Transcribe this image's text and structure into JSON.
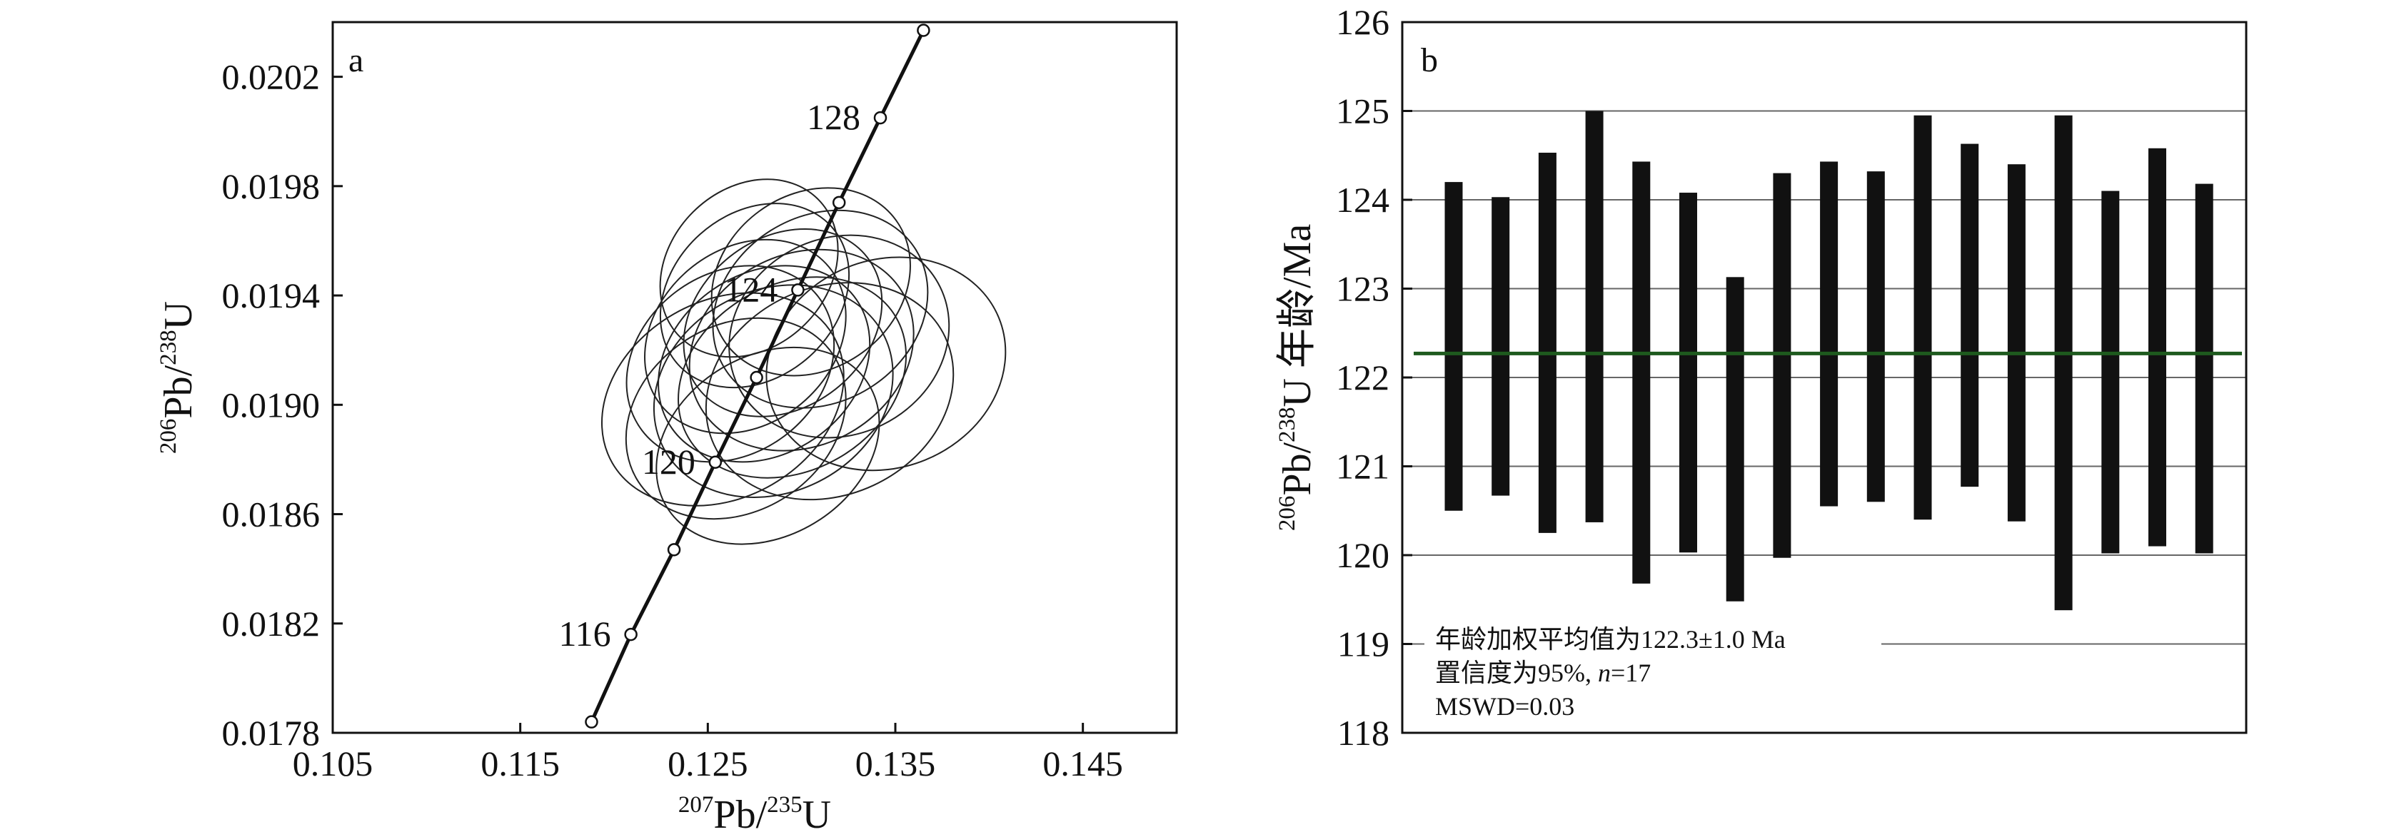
{
  "chart_data": [
    {
      "panel": "a",
      "type": "scatter",
      "subtype": "concordia-diagram-with-error-ellipses",
      "xlabel": {
        "sup1": "207",
        "base1": "Pb/",
        "sup2": "235",
        "base2": "U"
      },
      "ylabel": {
        "sup1": "206",
        "base1": "Pb/",
        "sup2": "238",
        "base2": "U"
      },
      "xlim": [
        0.105,
        0.15
      ],
      "ylim": [
        0.0178,
        0.0204
      ],
      "xticks": [
        "0.105",
        "0.115",
        "0.125",
        "0.135",
        "0.145"
      ],
      "yticks": [
        "0.0178",
        "0.0182",
        "0.0186",
        "0.0190",
        "0.0194",
        "0.0198",
        "0.0202"
      ],
      "concordia_points": [
        {
          "age": 114,
          "x": 0.1188,
          "y": 0.01784,
          "label": ""
        },
        {
          "age": 116,
          "x": 0.1209,
          "y": 0.01816,
          "label": "116"
        },
        {
          "age": 118,
          "x": 0.1232,
          "y": 0.01847,
          "label": ""
        },
        {
          "age": 120,
          "x": 0.1254,
          "y": 0.01879,
          "label": "120"
        },
        {
          "age": 122,
          "x": 0.1276,
          "y": 0.0191,
          "label": ""
        },
        {
          "age": 124,
          "x": 0.1298,
          "y": 0.01942,
          "label": "124"
        },
        {
          "age": 126,
          "x": 0.132,
          "y": 0.01974,
          "label": ""
        },
        {
          "age": 128,
          "x": 0.1342,
          "y": 0.02005,
          "label": "128"
        },
        {
          "age": 130,
          "x": 0.1365,
          "y": 0.02037,
          "label": ""
        }
      ],
      "ellipses": [
        {
          "cx": 0.1258,
          "cy": 0.01902,
          "rx": 0.0068,
          "ry": 0.00036,
          "angle": 30
        },
        {
          "cx": 0.128,
          "cy": 0.01915,
          "rx": 0.006,
          "ry": 0.00033,
          "angle": 35
        },
        {
          "cx": 0.13,
          "cy": 0.0192,
          "rx": 0.0062,
          "ry": 0.00035,
          "angle": 28
        },
        {
          "cx": 0.127,
          "cy": 0.01925,
          "rx": 0.0058,
          "ry": 0.00032,
          "angle": 40
        },
        {
          "cx": 0.129,
          "cy": 0.0193,
          "rx": 0.0057,
          "ry": 0.00031,
          "angle": 38
        },
        {
          "cx": 0.1265,
          "cy": 0.01895,
          "rx": 0.0062,
          "ry": 0.00034,
          "angle": 33
        },
        {
          "cx": 0.131,
          "cy": 0.01935,
          "rx": 0.006,
          "ry": 0.00034,
          "angle": 32
        },
        {
          "cx": 0.1285,
          "cy": 0.01905,
          "rx": 0.0066,
          "ry": 0.00037,
          "angle": 27
        },
        {
          "cx": 0.1275,
          "cy": 0.0194,
          "rx": 0.0055,
          "ry": 0.0003,
          "angle": 42
        },
        {
          "cx": 0.1295,
          "cy": 0.0191,
          "rx": 0.0064,
          "ry": 0.00034,
          "angle": 30
        },
        {
          "cx": 0.132,
          "cy": 0.01925,
          "rx": 0.006,
          "ry": 0.00036,
          "angle": 26
        },
        {
          "cx": 0.1262,
          "cy": 0.01915,
          "rx": 0.0059,
          "ry": 0.00033,
          "angle": 37
        },
        {
          "cx": 0.1305,
          "cy": 0.01945,
          "rx": 0.0056,
          "ry": 0.00032,
          "angle": 36
        },
        {
          "cx": 0.1282,
          "cy": 0.01885,
          "rx": 0.0063,
          "ry": 0.00033,
          "angle": 31
        },
        {
          "cx": 0.1315,
          "cy": 0.01905,
          "rx": 0.0068,
          "ry": 0.00038,
          "angle": 25
        },
        {
          "cx": 0.1272,
          "cy": 0.0195,
          "rx": 0.0052,
          "ry": 0.00029,
          "angle": 45
        },
        {
          "cx": 0.1345,
          "cy": 0.01915,
          "rx": 0.0065,
          "ry": 0.00038,
          "angle": 22
        }
      ]
    },
    {
      "panel": "b",
      "type": "bar",
      "subtype": "weighted-mean-age-error-bars",
      "ylabel": {
        "sup1": "206",
        "base1": "Pb/",
        "sup2": "238",
        "base2": "U 年龄/Ma"
      },
      "ylim": [
        118,
        126
      ],
      "yticks": [
        "118",
        "119",
        "120",
        "121",
        "122",
        "123",
        "124",
        "125",
        "126"
      ],
      "grid": "horizontal",
      "weighted_mean": 122.27,
      "bars": [
        {
          "low": 120.5,
          "high": 124.2
        },
        {
          "low": 120.67,
          "high": 124.03
        },
        {
          "low": 120.25,
          "high": 124.53
        },
        {
          "low": 120.37,
          "high": 125.0
        },
        {
          "low": 119.68,
          "high": 124.43
        },
        {
          "low": 120.03,
          "high": 124.08
        },
        {
          "low": 119.48,
          "high": 123.13
        },
        {
          "low": 119.97,
          "high": 124.3
        },
        {
          "low": 120.55,
          "high": 124.43
        },
        {
          "low": 120.6,
          "high": 124.32
        },
        {
          "low": 120.4,
          "high": 124.95
        },
        {
          "low": 120.77,
          "high": 124.63
        },
        {
          "low": 120.38,
          "high": 124.4
        },
        {
          "low": 119.38,
          "high": 124.95
        },
        {
          "low": 120.02,
          "high": 124.1
        },
        {
          "low": 120.1,
          "high": 124.58
        },
        {
          "low": 120.02,
          "high": 124.18
        }
      ],
      "annotation": {
        "line1": "年龄加权平均值为122.3±1.0 Ma",
        "line2_a": "置信度为95%, ",
        "line2_n": "n",
        "line2_b": "=17",
        "line3": "MSWD=0.03"
      },
      "colors": {
        "bars": "#111111",
        "mean_line": "#1e5a1e",
        "grid": "#666666"
      }
    }
  ]
}
